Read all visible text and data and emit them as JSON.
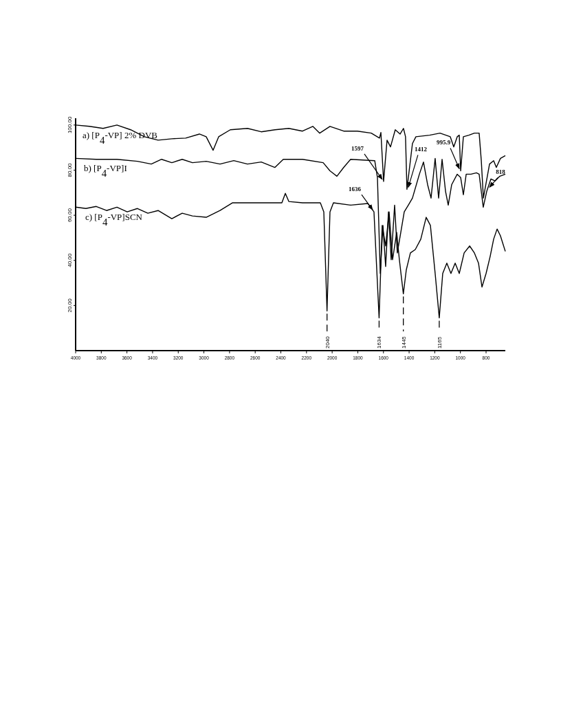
{
  "chart_data": {
    "type": "line",
    "xlim": [
      4000,
      650
    ],
    "xticks": [
      4000,
      3800,
      3600,
      3400,
      3200,
      3000,
      2800,
      2600,
      2400,
      2200,
      2000,
      1800,
      1600,
      1400,
      1200,
      1000,
      800
    ],
    "ylim": [
      0,
      103
    ],
    "yticks": [
      {
        "value": 20,
        "label": "20.00"
      },
      {
        "value": 40,
        "label": "40.00"
      },
      {
        "value": 60,
        "label": "60.00"
      },
      {
        "value": 80,
        "label": "80.00"
      },
      {
        "value": 100,
        "label": "100.00"
      }
    ],
    "grid": false,
    "legend": false,
    "marker": "none",
    "line_style": "solid",
    "series": [
      {
        "name": "a) [P$_{4}$-VP] 2% DVB",
        "color": "#000000",
        "x": [
          4000,
          3893,
          3786,
          3678,
          3571,
          3464,
          3357,
          3250,
          3142,
          3035,
          2982,
          2928,
          2885,
          2794,
          2660,
          2553,
          2446,
          2338,
          2231,
          2151,
          2097,
          2017,
          1910,
          1803,
          1695,
          1631,
          1620,
          1599,
          1572,
          1545,
          1508,
          1470,
          1444,
          1428,
          1417,
          1374,
          1347,
          1240,
          1159,
          1079,
          1052,
          1025,
          1009,
          998,
          977,
          934,
          891,
          854,
          837,
          821,
          773,
          741,
          720,
          688,
          650
        ],
        "values": [
          100,
          99.4,
          98.5,
          100,
          97.9,
          94.8,
          93.3,
          93.9,
          94.2,
          96,
          94.8,
          88.8,
          94.8,
          97.9,
          98.5,
          97,
          97.9,
          98.5,
          97.3,
          99.4,
          96.4,
          99.4,
          97.3,
          97.3,
          96.4,
          94.2,
          96.7,
          75,
          93.3,
          90.3,
          97.9,
          96,
          98.5,
          94.8,
          71.5,
          91.8,
          94.8,
          95.5,
          96.4,
          94.8,
          90.3,
          94.8,
          95.5,
          79.7,
          94.8,
          95.5,
          96.4,
          96.4,
          84,
          67.6,
          82.7,
          84.2,
          81.2,
          85.2,
          86.4
        ]
      },
      {
        "name": "b) [P$_{4}$-VP]I",
        "color": "#000000",
        "x": [
          4000,
          3839,
          3678,
          3518,
          3410,
          3330,
          3250,
          3169,
          3089,
          2982,
          2874,
          2767,
          2660,
          2553,
          2446,
          2381,
          2231,
          2070,
          2017,
          1963,
          1910,
          1856,
          1668,
          1647,
          1625,
          1604,
          1583,
          1561,
          1540,
          1513,
          1492,
          1465,
          1438,
          1406,
          1374,
          1320,
          1288,
          1256,
          1229,
          1197,
          1170,
          1143,
          1116,
          1095,
          1068,
          1025,
          998,
          977,
          955,
          918,
          875,
          854,
          822,
          795,
          762,
          730,
          693,
          650
        ],
        "values": [
          85.2,
          84.8,
          84.8,
          83.9,
          82.7,
          84.8,
          83.3,
          84.8,
          83.3,
          83.9,
          82.7,
          84.2,
          82.7,
          83.6,
          81.2,
          84.8,
          84.8,
          83.3,
          79.7,
          77.3,
          81.2,
          84.8,
          84.2,
          76.7,
          34.2,
          55.5,
          37.3,
          61.5,
          40.3,
          64.5,
          43.3,
          52.4,
          61.5,
          64.5,
          67.6,
          78.2,
          83.6,
          73.6,
          67.6,
          85.2,
          67.6,
          84.8,
          70.6,
          64.5,
          73.6,
          78.2,
          76.7,
          69.1,
          78.2,
          78.2,
          78.8,
          78.2,
          63.6,
          70.6,
          76.1,
          75.2,
          77.3,
          78.2
        ]
      },
      {
        "name": "c) [P$_{4}$-VP]SCN",
        "color": "#000000",
        "x": [
          4000,
          3920,
          3839,
          3759,
          3678,
          3598,
          3518,
          3437,
          3357,
          3250,
          3169,
          3089,
          2982,
          2874,
          2778,
          2606,
          2392,
          2365,
          2338,
          2231,
          2092,
          2065,
          2040,
          2017,
          1990,
          1856,
          1722,
          1674,
          1634,
          1610,
          1583,
          1556,
          1529,
          1497,
          1476,
          1445,
          1422,
          1390,
          1352,
          1309,
          1267,
          1234,
          1197,
          1165,
          1138,
          1106,
          1074,
          1041,
          1009,
          971,
          928,
          891,
          859,
          832,
          800,
          768,
          741,
          714,
          688,
          650
        ],
        "values": [
          63.6,
          63,
          63.9,
          62.1,
          63.6,
          61.5,
          63,
          60.9,
          62.1,
          58.5,
          60.9,
          59.7,
          59.1,
          62.1,
          65.5,
          65.5,
          65.5,
          69.7,
          66.1,
          65.5,
          65.5,
          61.5,
          17.6,
          61.5,
          65.5,
          64.5,
          65.2,
          61.5,
          14.5,
          55.5,
          46.4,
          61.5,
          40.3,
          52.4,
          40.3,
          25.2,
          35.8,
          43.3,
          44.8,
          49.4,
          59.1,
          55.5,
          34.2,
          14.5,
          34.2,
          38.8,
          34.2,
          38.8,
          34.2,
          43.3,
          46.4,
          43.3,
          38.8,
          28.2,
          34.2,
          41.8,
          49.4,
          53.9,
          50.9,
          44
        ]
      }
    ],
    "annotations": [
      {
        "text": "1597",
        "x": 1599,
        "y": 75
      },
      {
        "text": "1412",
        "x": 1417,
        "y": 71.5
      },
      {
        "text": "995.9",
        "x": 998,
        "y": 79.7
      },
      {
        "text": "1636",
        "x": 1674,
        "y": 61.5
      },
      {
        "text": "818",
        "x": 784,
        "y": 71.5
      },
      {
        "text": "2040",
        "x": 2040,
        "y": 17.6
      },
      {
        "text": "1634",
        "x": 1634,
        "y": 14.5
      },
      {
        "text": "1445",
        "x": 1445,
        "y": 25.2
      },
      {
        "text": "1165",
        "x": 1165,
        "y": 14.5
      }
    ]
  }
}
